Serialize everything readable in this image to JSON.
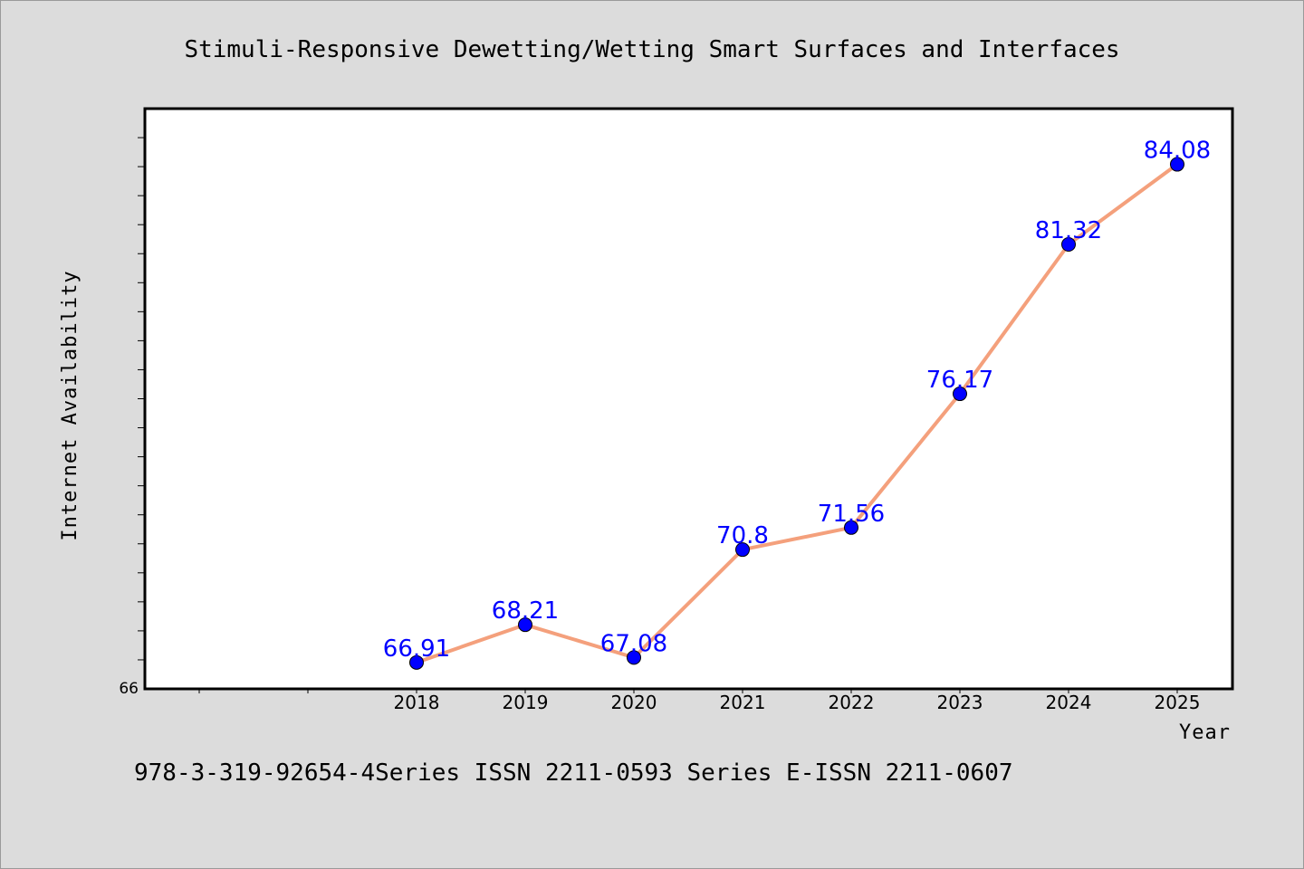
{
  "chart_data": {
    "type": "line",
    "title": "Stimuli-Responsive Dewetting/Wetting Smart Surfaces and Interfaces",
    "xlabel": "Year",
    "ylabel": "Internet Availability",
    "categories": [
      "2018",
      "2019",
      "2020",
      "2021",
      "2022",
      "2023",
      "2024",
      "2025"
    ],
    "series": [
      {
        "values": [
          66.91,
          68.21,
          67.08,
          70.8,
          71.56,
          76.17,
          81.32,
          84.08
        ],
        "labels": [
          "66.91",
          "68.21",
          "67.08",
          "70.8",
          "71.56",
          "76.17",
          "81.32",
          "84.08"
        ],
        "line_color": "#f4a07c",
        "marker_color": "#0000ff"
      }
    ],
    "y_min_label": "66",
    "ylim": [
      66,
      86
    ],
    "x_category_slots": 10,
    "grid": false,
    "legend": "none"
  },
  "footer": {
    "text": "978-3-319-92654-4Series ISSN 2211-0593 Series E-ISSN 2211-0607"
  }
}
